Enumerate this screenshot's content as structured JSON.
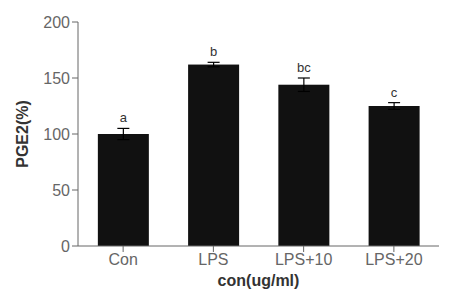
{
  "chart_data": {
    "type": "bar",
    "categories": [
      "Con",
      "LPS",
      "LPS+10",
      "LPS+20"
    ],
    "values": [
      100,
      162,
      144,
      125
    ],
    "errors": [
      5,
      2,
      6,
      3
    ],
    "annotations": [
      "a",
      "b",
      "bc",
      "c"
    ],
    "color": "#111111",
    "xlabel": "con(ug/ml)",
    "ylabel": "PGE2(%)",
    "ylim": [
      0,
      200
    ],
    "yticks": [
      0,
      50,
      100,
      150,
      200
    ]
  }
}
